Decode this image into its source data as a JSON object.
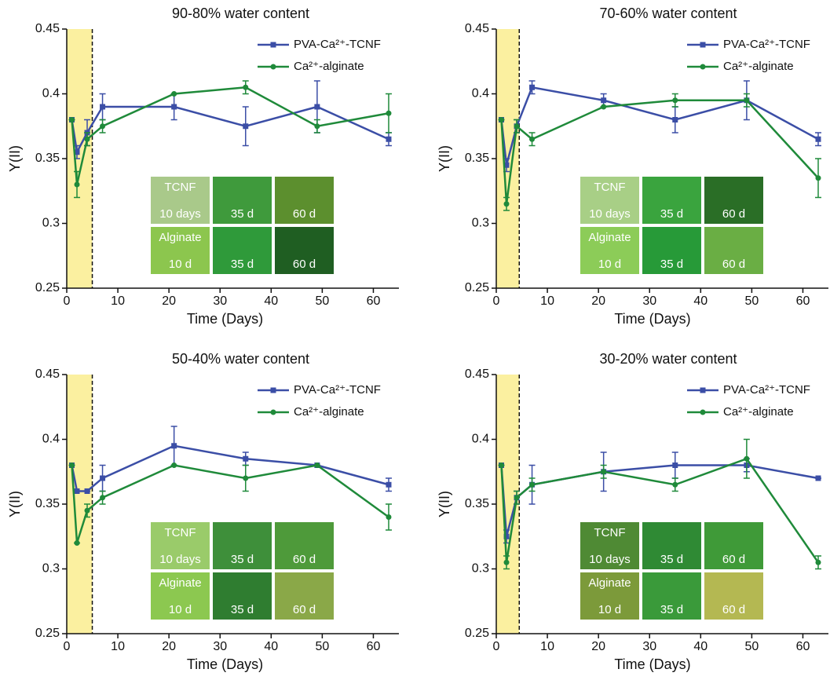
{
  "chart_data": [
    {
      "type": "line",
      "title": "90-80% water content",
      "xlabel": "Time (Days)",
      "ylabel": "Y(II)",
      "x": [
        1,
        2,
        4,
        7,
        21,
        35,
        49,
        63
      ],
      "xlim": [
        0,
        65
      ],
      "xticks": [
        0,
        10,
        20,
        30,
        40,
        50,
        60
      ],
      "ylim": [
        0.25,
        0.45
      ],
      "yticks": [
        0.25,
        0.3,
        0.35,
        0.4,
        0.45
      ],
      "shaded_range": [
        0,
        5
      ],
      "legend": "upper right",
      "series": [
        {
          "name": "PVA-Ca²⁺-TCNF",
          "color": "#3b4ea6",
          "marker": "square",
          "values": [
            0.38,
            0.355,
            0.37,
            0.39,
            0.39,
            0.375,
            0.39,
            0.365
          ],
          "errors": [
            0,
            0.005,
            0.01,
            0.01,
            0.01,
            0.015,
            0.02,
            0.005
          ]
        },
        {
          "name": "Ca²⁺-alginate",
          "color": "#1f8a3a",
          "marker": "circle",
          "values": [
            0.38,
            0.33,
            0.365,
            0.375,
            0.4,
            0.405,
            0.375,
            0.385
          ],
          "errors": [
            0,
            0.01,
            0.005,
            0.005,
            0,
            0.005,
            0.005,
            0.015
          ]
        }
      ],
      "inset": [
        {
          "top": "TCNF",
          "bottom": "10 days",
          "color": "#a9c98a"
        },
        {
          "bottom": "35 d",
          "color": "#3f9a3c"
        },
        {
          "bottom": "60 d",
          "color": "#5c8f2e"
        },
        {
          "top": "Alginate",
          "bottom": "10 d",
          "color": "#8cc64e"
        },
        {
          "bottom": "35 d",
          "color": "#2f9a3a"
        },
        {
          "bottom": "60 d",
          "color": "#1f5e22"
        }
      ]
    },
    {
      "type": "line",
      "title": "70-60% water content",
      "xlabel": "Time (Days)",
      "ylabel": "Y(II)",
      "x": [
        1,
        2,
        4,
        7,
        21,
        35,
        49,
        63
      ],
      "xlim": [
        0,
        65
      ],
      "xticks": [
        0,
        10,
        20,
        30,
        40,
        50,
        60
      ],
      "ylim": [
        0.25,
        0.45
      ],
      "yticks": [
        0.25,
        0.3,
        0.35,
        0.4,
        0.45
      ],
      "shaded_range": [
        0,
        4.5
      ],
      "legend": "upper right",
      "series": [
        {
          "name": "PVA-Ca²⁺-TCNF",
          "color": "#3b4ea6",
          "marker": "square",
          "values": [
            0.38,
            0.345,
            0.375,
            0.405,
            0.395,
            0.38,
            0.395,
            0.365
          ],
          "errors": [
            0,
            0.005,
            0.005,
            0.005,
            0.005,
            0.01,
            0.015,
            0.005
          ]
        },
        {
          "name": "Ca²⁺-alginate",
          "color": "#1f8a3a",
          "marker": "circle",
          "values": [
            0.38,
            0.315,
            0.375,
            0.365,
            0.39,
            0.395,
            0.395,
            0.335
          ],
          "errors": [
            0,
            0.005,
            0.005,
            0.005,
            0,
            0.005,
            0.005,
            0.015
          ]
        }
      ],
      "inset": [
        {
          "top": "TCNF",
          "bottom": "10 days",
          "color": "#a8cf86"
        },
        {
          "bottom": "35 d",
          "color": "#3aa43e"
        },
        {
          "bottom": "60 d",
          "color": "#2a6e26"
        },
        {
          "top": "Alginate",
          "bottom": "10 d",
          "color": "#8ccc58"
        },
        {
          "bottom": "35 d",
          "color": "#279a38"
        },
        {
          "bottom": "60 d",
          "color": "#6aae44"
        }
      ]
    },
    {
      "type": "line",
      "title": "50-40% water content",
      "xlabel": "Time (Days)",
      "ylabel": "Y(II)",
      "x": [
        1,
        2,
        4,
        7,
        21,
        35,
        49,
        63
      ],
      "xlim": [
        0,
        65
      ],
      "xticks": [
        0,
        10,
        20,
        30,
        40,
        50,
        60
      ],
      "ylim": [
        0.25,
        0.45
      ],
      "yticks": [
        0.25,
        0.3,
        0.35,
        0.4,
        0.45
      ],
      "shaded_range": [
        0,
        5
      ],
      "legend": "upper right",
      "series": [
        {
          "name": "PVA-Ca²⁺-TCNF",
          "color": "#3b4ea6",
          "marker": "square",
          "values": [
            0.38,
            0.36,
            0.36,
            0.37,
            0.395,
            0.385,
            0.38,
            0.365
          ],
          "errors": [
            0,
            0,
            0,
            0.01,
            0.015,
            0.005,
            0,
            0.005
          ]
        },
        {
          "name": "Ca²⁺-alginate",
          "color": "#1f8a3a",
          "marker": "circle",
          "values": [
            0.38,
            0.32,
            0.345,
            0.355,
            0.38,
            0.37,
            0.38,
            0.34
          ],
          "errors": [
            0,
            0,
            0.005,
            0.005,
            0,
            0.01,
            0,
            0.01
          ]
        }
      ],
      "inset": [
        {
          "top": "TCNF",
          "bottom": "10 days",
          "color": "#9acb6a"
        },
        {
          "bottom": "35 d",
          "color": "#3e8f3a"
        },
        {
          "bottom": "60 d",
          "color": "#4e9a3a"
        },
        {
          "top": "Alginate",
          "bottom": "10 d",
          "color": "#8cc850"
        },
        {
          "bottom": "35 d",
          "color": "#2f7d30"
        },
        {
          "bottom": "60 d",
          "color": "#8aa848"
        }
      ]
    },
    {
      "type": "line",
      "title": "30-20% water content",
      "xlabel": "Time (Days)",
      "ylabel": "Y(II)",
      "x": [
        1,
        2,
        4,
        7,
        21,
        35,
        49,
        63
      ],
      "xlim": [
        0,
        65
      ],
      "xticks": [
        0,
        10,
        20,
        30,
        40,
        50,
        60
      ],
      "ylim": [
        0.25,
        0.45
      ],
      "yticks": [
        0.25,
        0.3,
        0.35,
        0.4,
        0.45
      ],
      "shaded_range": [
        0,
        4.5
      ],
      "legend": "upper right",
      "series": [
        {
          "name": "PVA-Ca²⁺-TCNF",
          "color": "#3b4ea6",
          "marker": "square",
          "values": [
            0.38,
            0.325,
            0.355,
            0.365,
            0.375,
            0.38,
            0.38,
            0.37
          ],
          "errors": [
            0,
            0.005,
            0.005,
            0.015,
            0.015,
            0.01,
            0.005,
            0
          ]
        },
        {
          "name": "Ca²⁺-alginate",
          "color": "#1f8a3a",
          "marker": "circle",
          "values": [
            0.38,
            0.305,
            0.355,
            0.365,
            0.375,
            0.365,
            0.385,
            0.305
          ],
          "errors": [
            0,
            0.005,
            0.005,
            0.005,
            0.005,
            0.005,
            0.015,
            0.005
          ]
        }
      ],
      "inset": [
        {
          "top": "TCNF",
          "bottom": "10 days",
          "color": "#4f8a34"
        },
        {
          "bottom": "35 d",
          "color": "#2f8a34"
        },
        {
          "bottom": "60 d",
          "color": "#3f9a38"
        },
        {
          "top": "Alginate",
          "bottom": "10 d",
          "color": "#7c9a3a"
        },
        {
          "bottom": "35 d",
          "color": "#3a9a3a"
        },
        {
          "bottom": "60 d",
          "color": "#b4b852"
        }
      ]
    }
  ]
}
